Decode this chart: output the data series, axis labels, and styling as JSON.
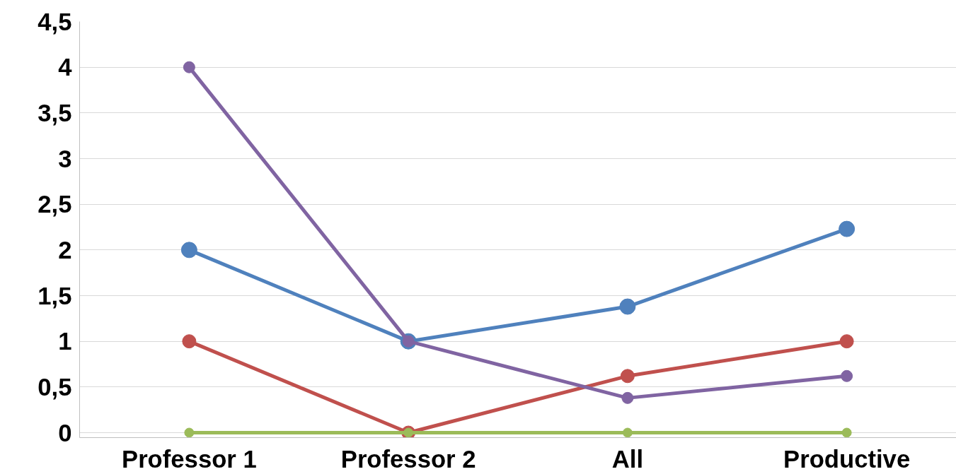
{
  "chart_data": {
    "type": "line",
    "categories": [
      "Professor 1",
      "Professor 2",
      "All",
      "Productive"
    ],
    "series": [
      {
        "color": "#4f81bd",
        "values": [
          2,
          1,
          1.38,
          2.23
        ]
      },
      {
        "color": "#c0504d",
        "values": [
          1,
          0,
          0.62,
          1
        ]
      },
      {
        "color": "#8064a2",
        "values": [
          4,
          1,
          0.38,
          0.62
        ]
      },
      {
        "color": "#9bbb59",
        "values": [
          0,
          0,
          0,
          0
        ]
      }
    ],
    "ylim": [
      0,
      4.5
    ],
    "yticks": [
      0,
      {
        "value": 0.5,
        "label": "0,5"
      },
      1,
      {
        "value": 1.5,
        "label": "1,5"
      },
      2,
      {
        "value": 2.5,
        "label": "2,5"
      },
      3,
      {
        "value": 3.5,
        "label": "3,5"
      },
      4,
      {
        "value": 4.5,
        "label": "4,5"
      }
    ],
    "grid": "y",
    "marker": "circle",
    "line_style": "solid"
  }
}
